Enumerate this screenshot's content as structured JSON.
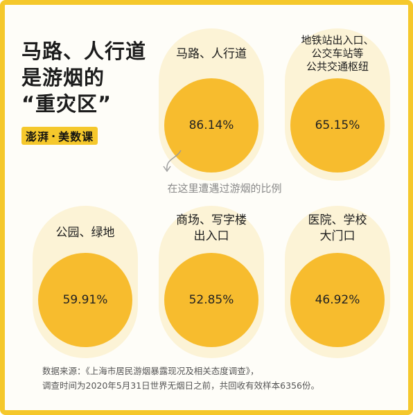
{
  "title": {
    "line1": "马路、人行道",
    "line2": "是游烟的",
    "line3": "“重灾区”"
  },
  "logo": {
    "part1": "澎湃",
    "dot": "·",
    "part2": "美数课"
  },
  "items": [
    {
      "label_lines": [
        "马路、人行道"
      ],
      "percent": "86.14%"
    },
    {
      "label_lines": [
        "地铁站出入口、",
        "公交车站等",
        "公共交通枢纽"
      ],
      "percent": "65.15%"
    },
    {
      "label_lines": [
        "公园、绿地"
      ],
      "percent": "59.91%"
    },
    {
      "label_lines": [
        "商场、写字楼",
        "出入口"
      ],
      "percent": "52.85%"
    },
    {
      "label_lines": [
        "医院、学校",
        "大门口"
      ],
      "percent": "46.92%"
    }
  ],
  "note": "在这里遭遇过游烟的比例",
  "source": {
    "line1": "数据来源：《上海市居民游烟暴露现况及相关态度调查》，",
    "line2": "调查时间为2020年5月31日世界无烟日之前，共回收有效样本6356份。"
  },
  "colors": {
    "border": "#f5c82c",
    "circle": "#f7bc2e",
    "pill": "#fcf3d6"
  }
}
